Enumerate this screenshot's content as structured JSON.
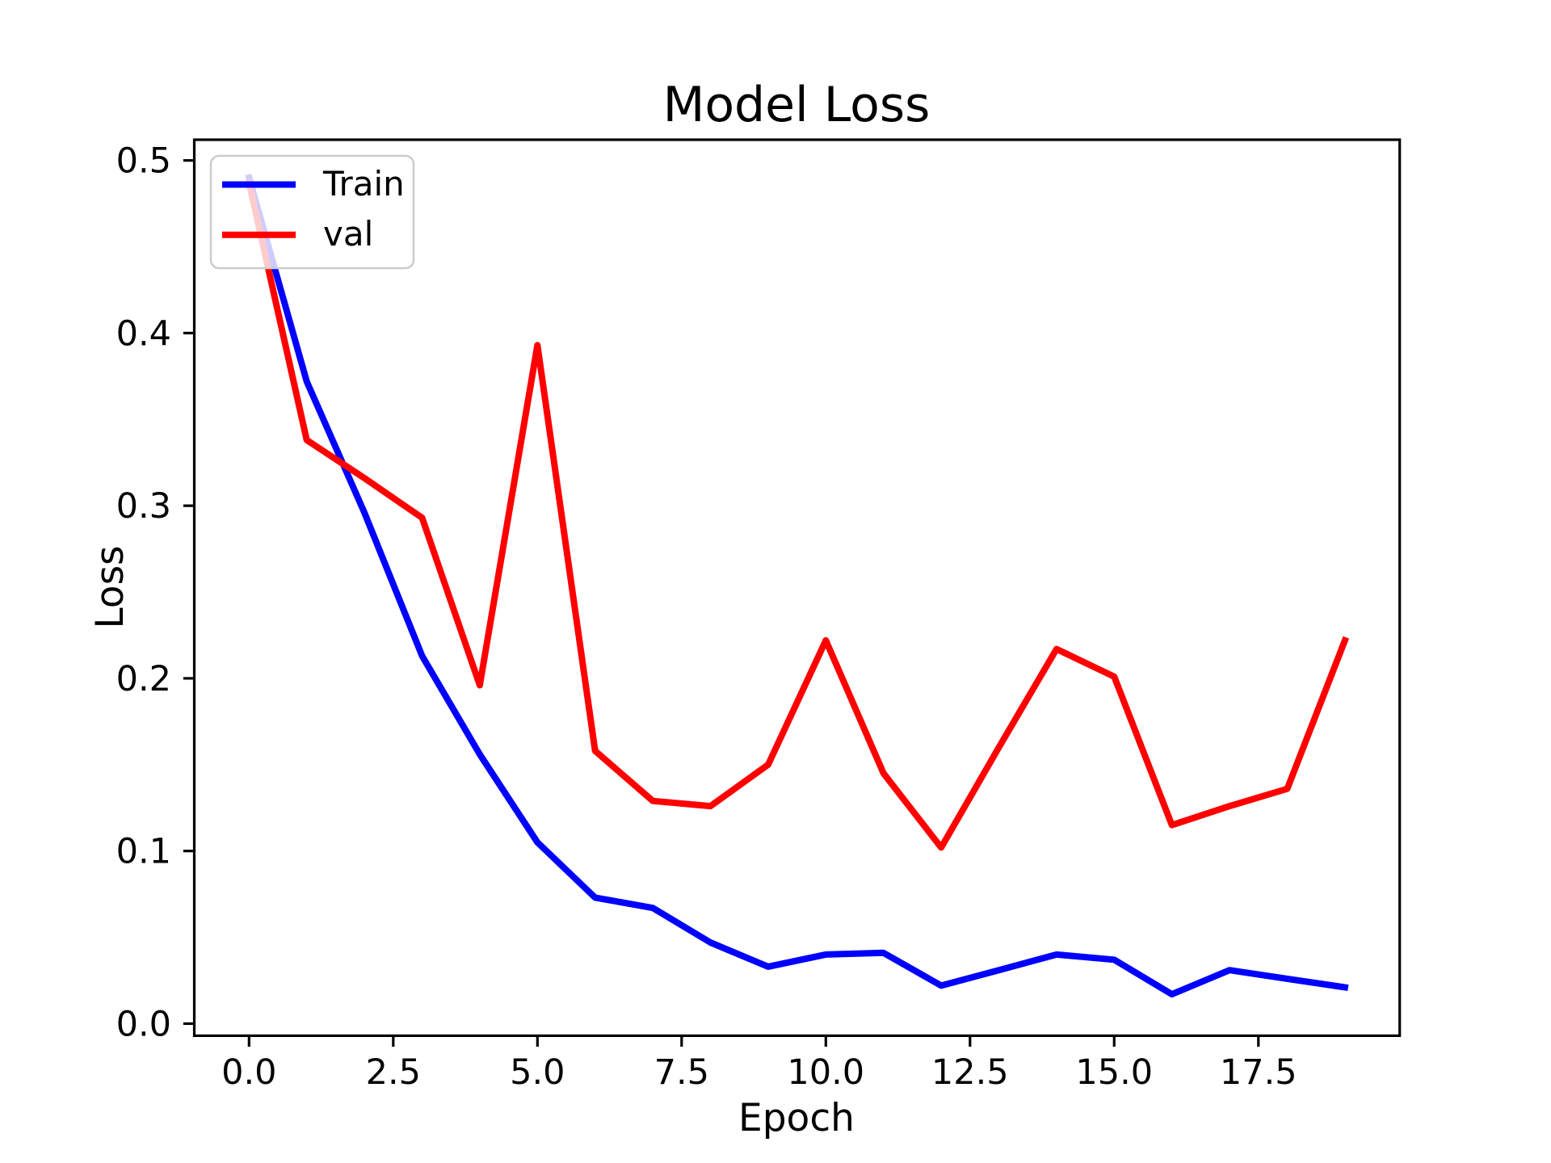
{
  "chart_data": {
    "type": "line",
    "title": "Model Loss",
    "xlabel": "Epoch",
    "ylabel": "Loss",
    "grid": false,
    "legend": {
      "position": "upper left"
    },
    "xlim": [
      -0.95,
      19.95
    ],
    "ylim": [
      -0.007,
      0.512
    ],
    "xticks": {
      "values": [
        0,
        2.5,
        5,
        7.5,
        10,
        12.5,
        15,
        17.5
      ],
      "labels": [
        "0.0",
        "2.5",
        "5.0",
        "7.5",
        "10.0",
        "12.5",
        "15.0",
        "17.5"
      ]
    },
    "yticks": {
      "values": [
        0,
        0.1,
        0.2,
        0.3,
        0.4,
        0.5
      ],
      "labels": [
        "0.0",
        "0.1",
        "0.2",
        "0.3",
        "0.4",
        "0.5"
      ]
    },
    "x": [
      0,
      1,
      2,
      3,
      4,
      5,
      6,
      7,
      8,
      9,
      10,
      11,
      12,
      13,
      14,
      15,
      16,
      17,
      18,
      19
    ],
    "series": [
      {
        "name": "Train",
        "color": "#0000ff",
        "values": [
          0.49,
          0.372,
          0.296,
          0.213,
          0.156,
          0.105,
          0.073,
          0.067,
          0.047,
          0.033,
          0.04,
          0.041,
          0.022,
          0.031,
          0.04,
          0.037,
          0.017,
          0.031,
          0.026,
          0.021
        ]
      },
      {
        "name": "val",
        "color": "#ff0000",
        "values": [
          0.487,
          0.338,
          0.316,
          0.293,
          0.196,
          0.393,
          0.158,
          0.129,
          0.126,
          0.15,
          0.222,
          0.145,
          0.102,
          0.16,
          0.217,
          0.201,
          0.115,
          0.126,
          0.136,
          0.222
        ]
      }
    ],
    "spine_color": "#000000",
    "legend_border_color": "#cccccc"
  }
}
